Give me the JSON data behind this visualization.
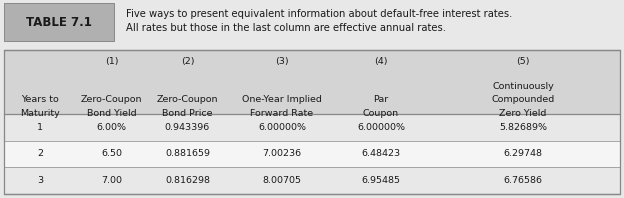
{
  "table_label": "TABLE 7.1",
  "caption_line1": "Five ways to present equivalent information about default-free interest rates.",
  "caption_line2": "All rates but those in the last column are effective annual rates.",
  "col_numbers": [
    "(1)",
    "(2)",
    "(3)",
    "(4)",
    "(5)"
  ],
  "col_headers": [
    [
      "Years to",
      "Maturity"
    ],
    [
      "Zero-Coupon",
      "Bond Yield"
    ],
    [
      "Zero-Coupon",
      "Bond Price"
    ],
    [
      "One-Year Implied",
      "Forward Rate"
    ],
    [
      "Par",
      "Coupon"
    ],
    [
      "Continuously",
      "Compounded",
      "Zero Yield"
    ]
  ],
  "rows": [
    [
      "1",
      "6.00%",
      "0.943396",
      "6.00000%",
      "6.00000%",
      "5.82689%"
    ],
    [
      "2",
      "6.50",
      "0.881659",
      "7.00236",
      "6.48423",
      "6.29748"
    ],
    [
      "3",
      "7.00",
      "0.816298",
      "8.00705",
      "6.95485",
      "6.76586"
    ]
  ],
  "header_bg": "#d4d4d4",
  "table_label_bg": "#b0b0b0",
  "page_bg": "#e8e8e8",
  "row_bg_even": "#e8e8e8",
  "row_bg_odd": "#f5f5f5",
  "border_color": "#888888",
  "text_color": "#1a1a1a",
  "font_size": 6.8,
  "caption_font_size": 7.2,
  "label_font_size": 8.5
}
